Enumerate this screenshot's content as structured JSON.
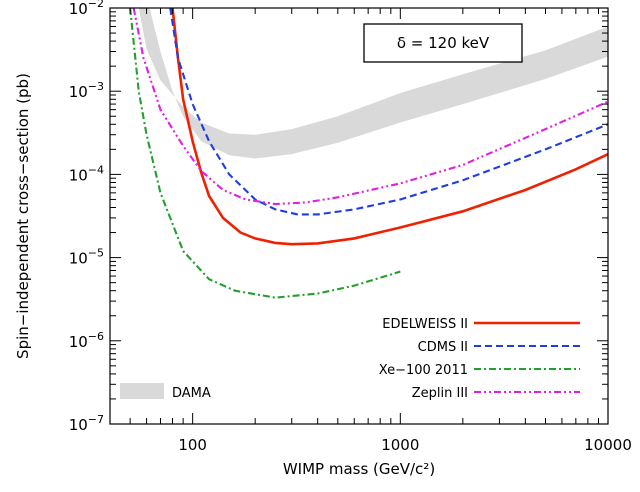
{
  "chart_data": {
    "type": "line",
    "title": "",
    "xlabel": "WIMP mass (GeV/c²)",
    "ylabel": "Spin−independent cross−section (pb)",
    "xscale": "log",
    "yscale": "log",
    "xlim": [
      40,
      10000
    ],
    "ylim": [
      1e-07,
      0.01
    ],
    "grid": false,
    "legend_placement": "bottom-right",
    "x_ticks": [
      {
        "value": 100,
        "label": "100"
      },
      {
        "value": 1000,
        "label": "1000"
      },
      {
        "value": 10000,
        "label": "10000"
      }
    ],
    "y_ticks": [
      {
        "value": 0.01,
        "base": "10",
        "exp": "−2"
      },
      {
        "value": 0.001,
        "base": "10",
        "exp": "−3"
      },
      {
        "value": 0.0001,
        "base": "10",
        "exp": "−4"
      },
      {
        "value": 1e-05,
        "base": "10",
        "exp": "−5"
      },
      {
        "value": 1e-06,
        "base": "10",
        "exp": "−6"
      },
      {
        "value": 1e-07,
        "base": "10",
        "exp": "−7"
      }
    ],
    "annotation": "δ = 120 keV",
    "dama_band": {
      "name": "DAMA",
      "color": "#d9d9d9",
      "upper": [
        [
          55,
          0.01
        ],
        [
          60,
          0.0032
        ],
        [
          70,
          0.00135
        ],
        [
          90,
          0.00065
        ],
        [
          110,
          0.00042
        ],
        [
          150,
          0.00031
        ],
        [
          200,
          0.0003
        ],
        [
          300,
          0.00035
        ],
        [
          500,
          0.0005
        ],
        [
          1000,
          0.00095
        ],
        [
          2000,
          0.0016
        ],
        [
          5000,
          0.0031
        ],
        [
          10000,
          0.006
        ]
      ],
      "lower": [
        [
          62,
          0.01
        ],
        [
          70,
          0.003
        ],
        [
          80,
          0.001
        ],
        [
          90,
          0.0005
        ],
        [
          110,
          0.00025
        ],
        [
          150,
          0.00017
        ],
        [
          200,
          0.000155
        ],
        [
          300,
          0.000175
        ],
        [
          500,
          0.00024
        ],
        [
          1000,
          0.00042
        ],
        [
          2000,
          0.0007
        ],
        [
          5000,
          0.0014
        ],
        [
          10000,
          0.0026
        ]
      ]
    },
    "series": [
      {
        "name": "EDELWEISS II",
        "color": "#ee2200",
        "dash": "solid",
        "points": [
          [
            80,
            0.01
          ],
          [
            85,
            0.0025
          ],
          [
            90,
            0.0008
          ],
          [
            100,
            0.00025
          ],
          [
            110,
            0.000105
          ],
          [
            120,
            5.5e-05
          ],
          [
            140,
            3e-05
          ],
          [
            170,
            2e-05
          ],
          [
            200,
            1.7e-05
          ],
          [
            250,
            1.5e-05
          ],
          [
            300,
            1.45e-05
          ],
          [
            400,
            1.48e-05
          ],
          [
            600,
            1.7e-05
          ],
          [
            1000,
            2.3e-05
          ],
          [
            2000,
            3.6e-05
          ],
          [
            4000,
            6.5e-05
          ],
          [
            7000,
            0.000115
          ],
          [
            10000,
            0.000175
          ]
        ]
      },
      {
        "name": "CDMS II",
        "color": "#1f3de0",
        "dash": "dashed",
        "points": [
          [
            78,
            0.01
          ],
          [
            85,
            0.0025
          ],
          [
            100,
            0.0007
          ],
          [
            120,
            0.00025
          ],
          [
            150,
            0.0001
          ],
          [
            200,
            5e-05
          ],
          [
            250,
            3.8e-05
          ],
          [
            320,
            3.3e-05
          ],
          [
            400,
            3.3e-05
          ],
          [
            600,
            3.8e-05
          ],
          [
            1000,
            5e-05
          ],
          [
            2000,
            8.5e-05
          ],
          [
            5000,
            0.0002
          ],
          [
            10000,
            0.0004
          ]
        ]
      },
      {
        "name": "Xe−100 2011",
        "color": "#22a02c",
        "dash": "dashdot",
        "points": [
          [
            50,
            0.01
          ],
          [
            55,
            0.001
          ],
          [
            60,
            0.0003
          ],
          [
            70,
            6e-05
          ],
          [
            90,
            1.2e-05
          ],
          [
            120,
            5.5e-06
          ],
          [
            160,
            4e-06
          ],
          [
            250,
            3.3e-06
          ],
          [
            400,
            3.7e-06
          ],
          [
            600,
            4.6e-06
          ],
          [
            1000,
            6.8e-06
          ]
        ]
      },
      {
        "name": "Zeplin III",
        "color": "#e020e0",
        "dash": "dashdotdot",
        "points": [
          [
            52,
            0.01
          ],
          [
            58,
            0.0025
          ],
          [
            70,
            0.0006
          ],
          [
            90,
            0.00022
          ],
          [
            110,
            0.00011
          ],
          [
            140,
            6.5e-05
          ],
          [
            180,
            5e-05
          ],
          [
            250,
            4.4e-05
          ],
          [
            350,
            4.6e-05
          ],
          [
            500,
            5.3e-05
          ],
          [
            1000,
            7.8e-05
          ],
          [
            2000,
            0.00013
          ],
          [
            5000,
            0.00035
          ],
          [
            10000,
            0.00075
          ]
        ]
      }
    ]
  }
}
